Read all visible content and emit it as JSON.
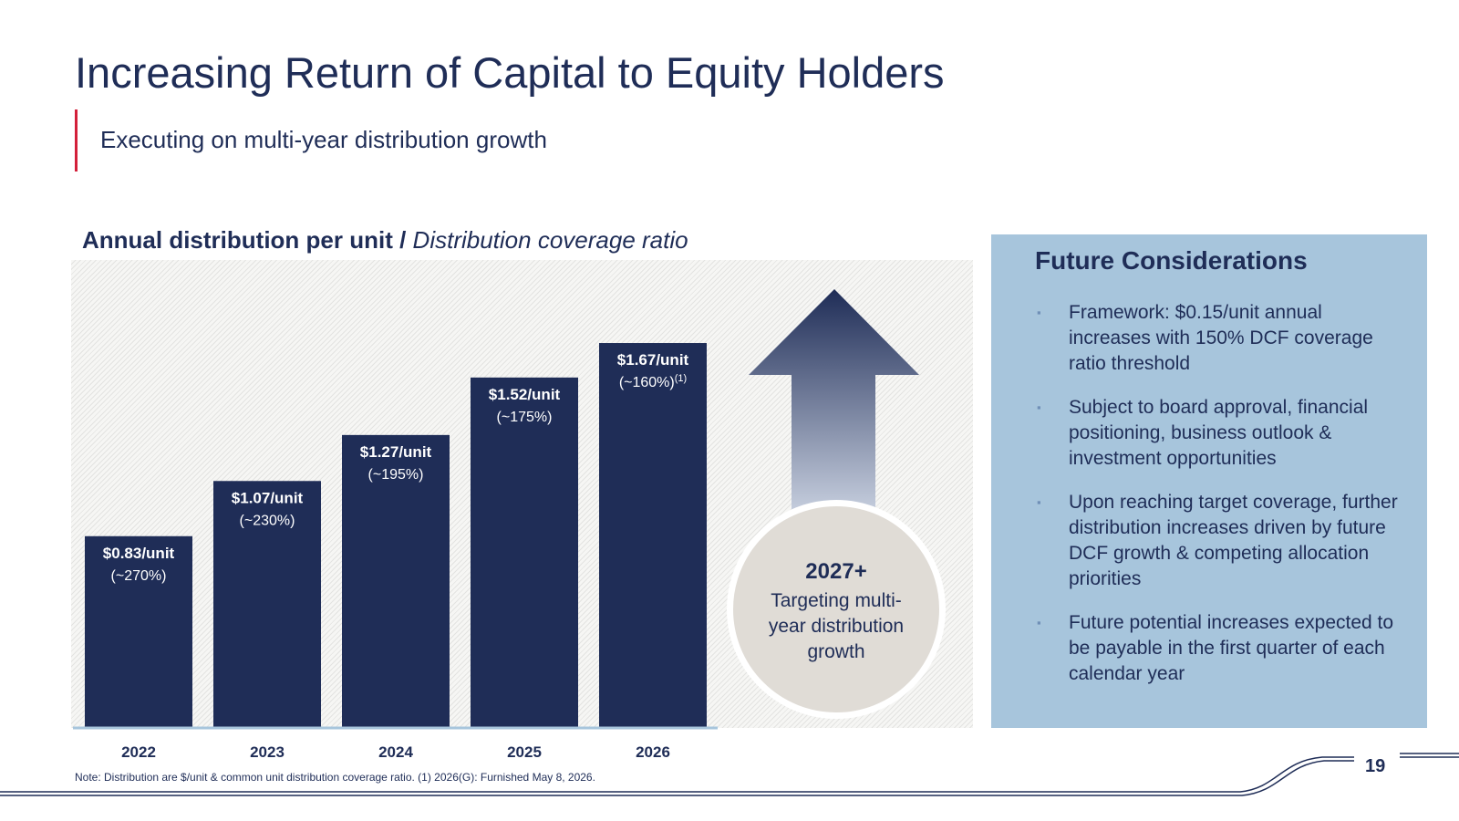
{
  "slide": {
    "title": "Increasing Return of Capital to Equity Holders",
    "subtitle": "Executing on multi-year distribution growth",
    "page_number": "19",
    "note": "Note: Distribution are $/unit & common unit distribution coverage ratio. (1) 2026(G): Furnished May 8, 2026."
  },
  "colors": {
    "accent_red": "#d31f3a",
    "navy": "#1f2d57",
    "panel_blue": "#a7c5dc",
    "circle_fill": "#e0dcd6"
  },
  "chart_data": {
    "type": "bar",
    "title_bold": "Annual distribution per unit /",
    "title_italic": "Distribution coverage ratio",
    "categories": [
      "2022",
      "2023",
      "2024",
      "2025",
      "2026"
    ],
    "series": [
      {
        "values": [
          0.83,
          1.07,
          1.27,
          1.52,
          1.67
        ]
      }
    ],
    "data_labels": [
      "$0.83/unit",
      "$1.07/unit",
      "$1.27/unit",
      "$1.52/unit",
      "$1.67/unit"
    ],
    "coverage_labels": [
      "(~270%)",
      "(~230%)",
      "(~195%)",
      "(~175%)",
      "(~160%)"
    ],
    "coverage_superscripts": [
      "",
      "",
      "",
      "",
      "(1)"
    ],
    "ylim": [
      0,
      1.92
    ],
    "grid": false,
    "bar_color": "#1f2d57"
  },
  "outlook": {
    "year": "2027+",
    "text": "Targeting multi-year distribution growth",
    "arrow_icon": "up-arrow-icon"
  },
  "future_considerations": {
    "title": "Future Considerations",
    "bullet_icon": "square-bullet-icon",
    "items": [
      "Framework: $0.15/unit annual increases with 150% DCF coverage ratio threshold",
      "Subject to board approval, financial positioning, business outlook & investment opportunities",
      "Upon reaching target coverage, further distribution increases driven by future DCF growth & competing allocation priorities",
      "Future potential increases expected to be payable in the first quarter of each calendar year"
    ]
  }
}
